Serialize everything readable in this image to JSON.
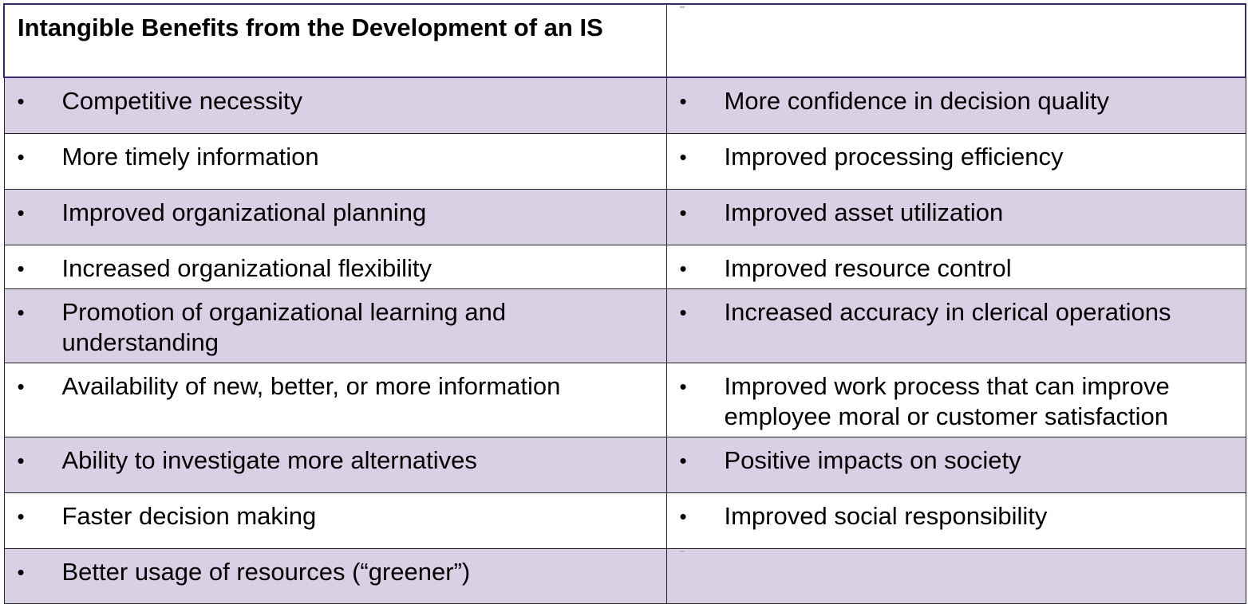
{
  "table": {
    "header": "Intangible Benefits from the Development of an IS",
    "bullet": "•",
    "rows": [
      {
        "left": "Competitive necessity",
        "right": "More confidence in decision quality"
      },
      {
        "left": "More timely information",
        "right": "Improved processing efficiency"
      },
      {
        "left": "Improved organizational planning",
        "right": "Improved asset utilization"
      },
      {
        "left": "Increased organizational flexibility",
        "right": "Improved resource control"
      },
      {
        "left": "Promotion of organizational learning and understanding",
        "right": "Increased accuracy in clerical operations"
      },
      {
        "left": "Availability of new, better, or more information",
        "right": "Improved work process that can improve employee moral or customer satisfaction"
      },
      {
        "left": "Ability to investigate more alternatives",
        "right": "Positive impacts on society"
      },
      {
        "left": "Faster decision making",
        "right": "Improved social responsibility"
      },
      {
        "left": "Better usage of resources (“greener”)",
        "right": ""
      }
    ]
  },
  "colors": {
    "shaded_row": "#d9d0e6",
    "plain_row": "#ffffff",
    "header_border": "#3b2a6b"
  }
}
